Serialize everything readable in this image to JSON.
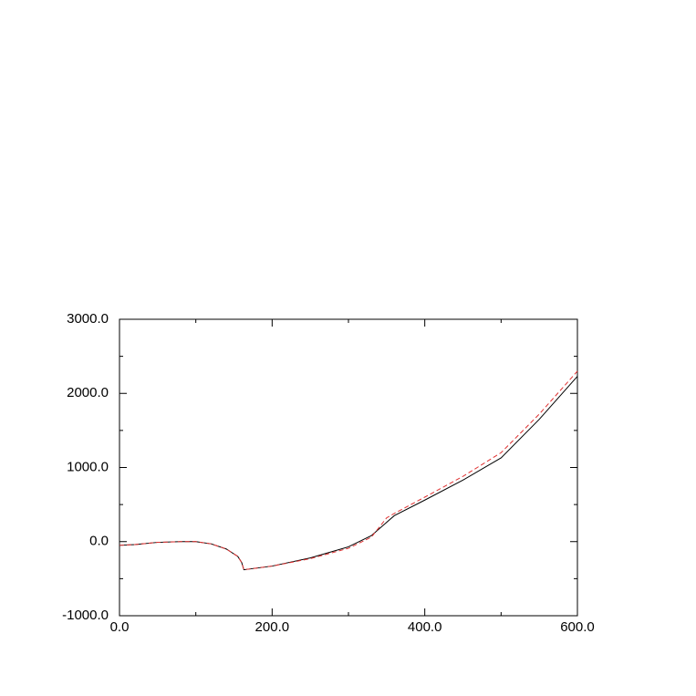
{
  "chart_data": {
    "type": "line",
    "x": [
      0,
      20,
      50,
      80,
      100,
      120,
      140,
      155,
      160,
      163,
      170,
      200,
      250,
      300,
      330,
      350,
      360,
      400,
      450,
      500,
      550,
      600
    ],
    "series": [
      {
        "color": "#000000",
        "dash": "solid",
        "values": [
          -50,
          -40,
          -10,
          0,
          0,
          -30,
          -100,
          -200,
          -280,
          -380,
          -370,
          -330,
          -220,
          -70,
          80,
          260,
          350,
          560,
          830,
          1130,
          1650,
          2230
        ]
      },
      {
        "color": "#e03030",
        "dash": "dashed",
        "values": [
          -50,
          -40,
          -10,
          0,
          0,
          -30,
          -100,
          -200,
          -280,
          -380,
          -370,
          -330,
          -230,
          -90,
          60,
          320,
          380,
          600,
          880,
          1200,
          1720,
          2300
        ]
      }
    ],
    "xlim": [
      0,
      600
    ],
    "xticks": [
      {
        "value": 0,
        "label": "0.0"
      },
      {
        "value": 200,
        "label": "200.0"
      },
      {
        "value": 400,
        "label": "400.0"
      },
      {
        "value": 600,
        "label": "600.0"
      }
    ],
    "xminorticks": [
      100,
      300,
      500
    ],
    "ylim": [
      -1000,
      3000
    ],
    "yticks": [
      {
        "value": -1000,
        "label": "-1000.0"
      },
      {
        "value": 0,
        "label": "0.0"
      },
      {
        "value": 1000,
        "label": "1000.0"
      },
      {
        "value": 2000,
        "label": "2000.0"
      },
      {
        "value": 3000,
        "label": "3000.0"
      }
    ],
    "yminorticks": [
      -500,
      500,
      1500,
      2500
    ]
  }
}
